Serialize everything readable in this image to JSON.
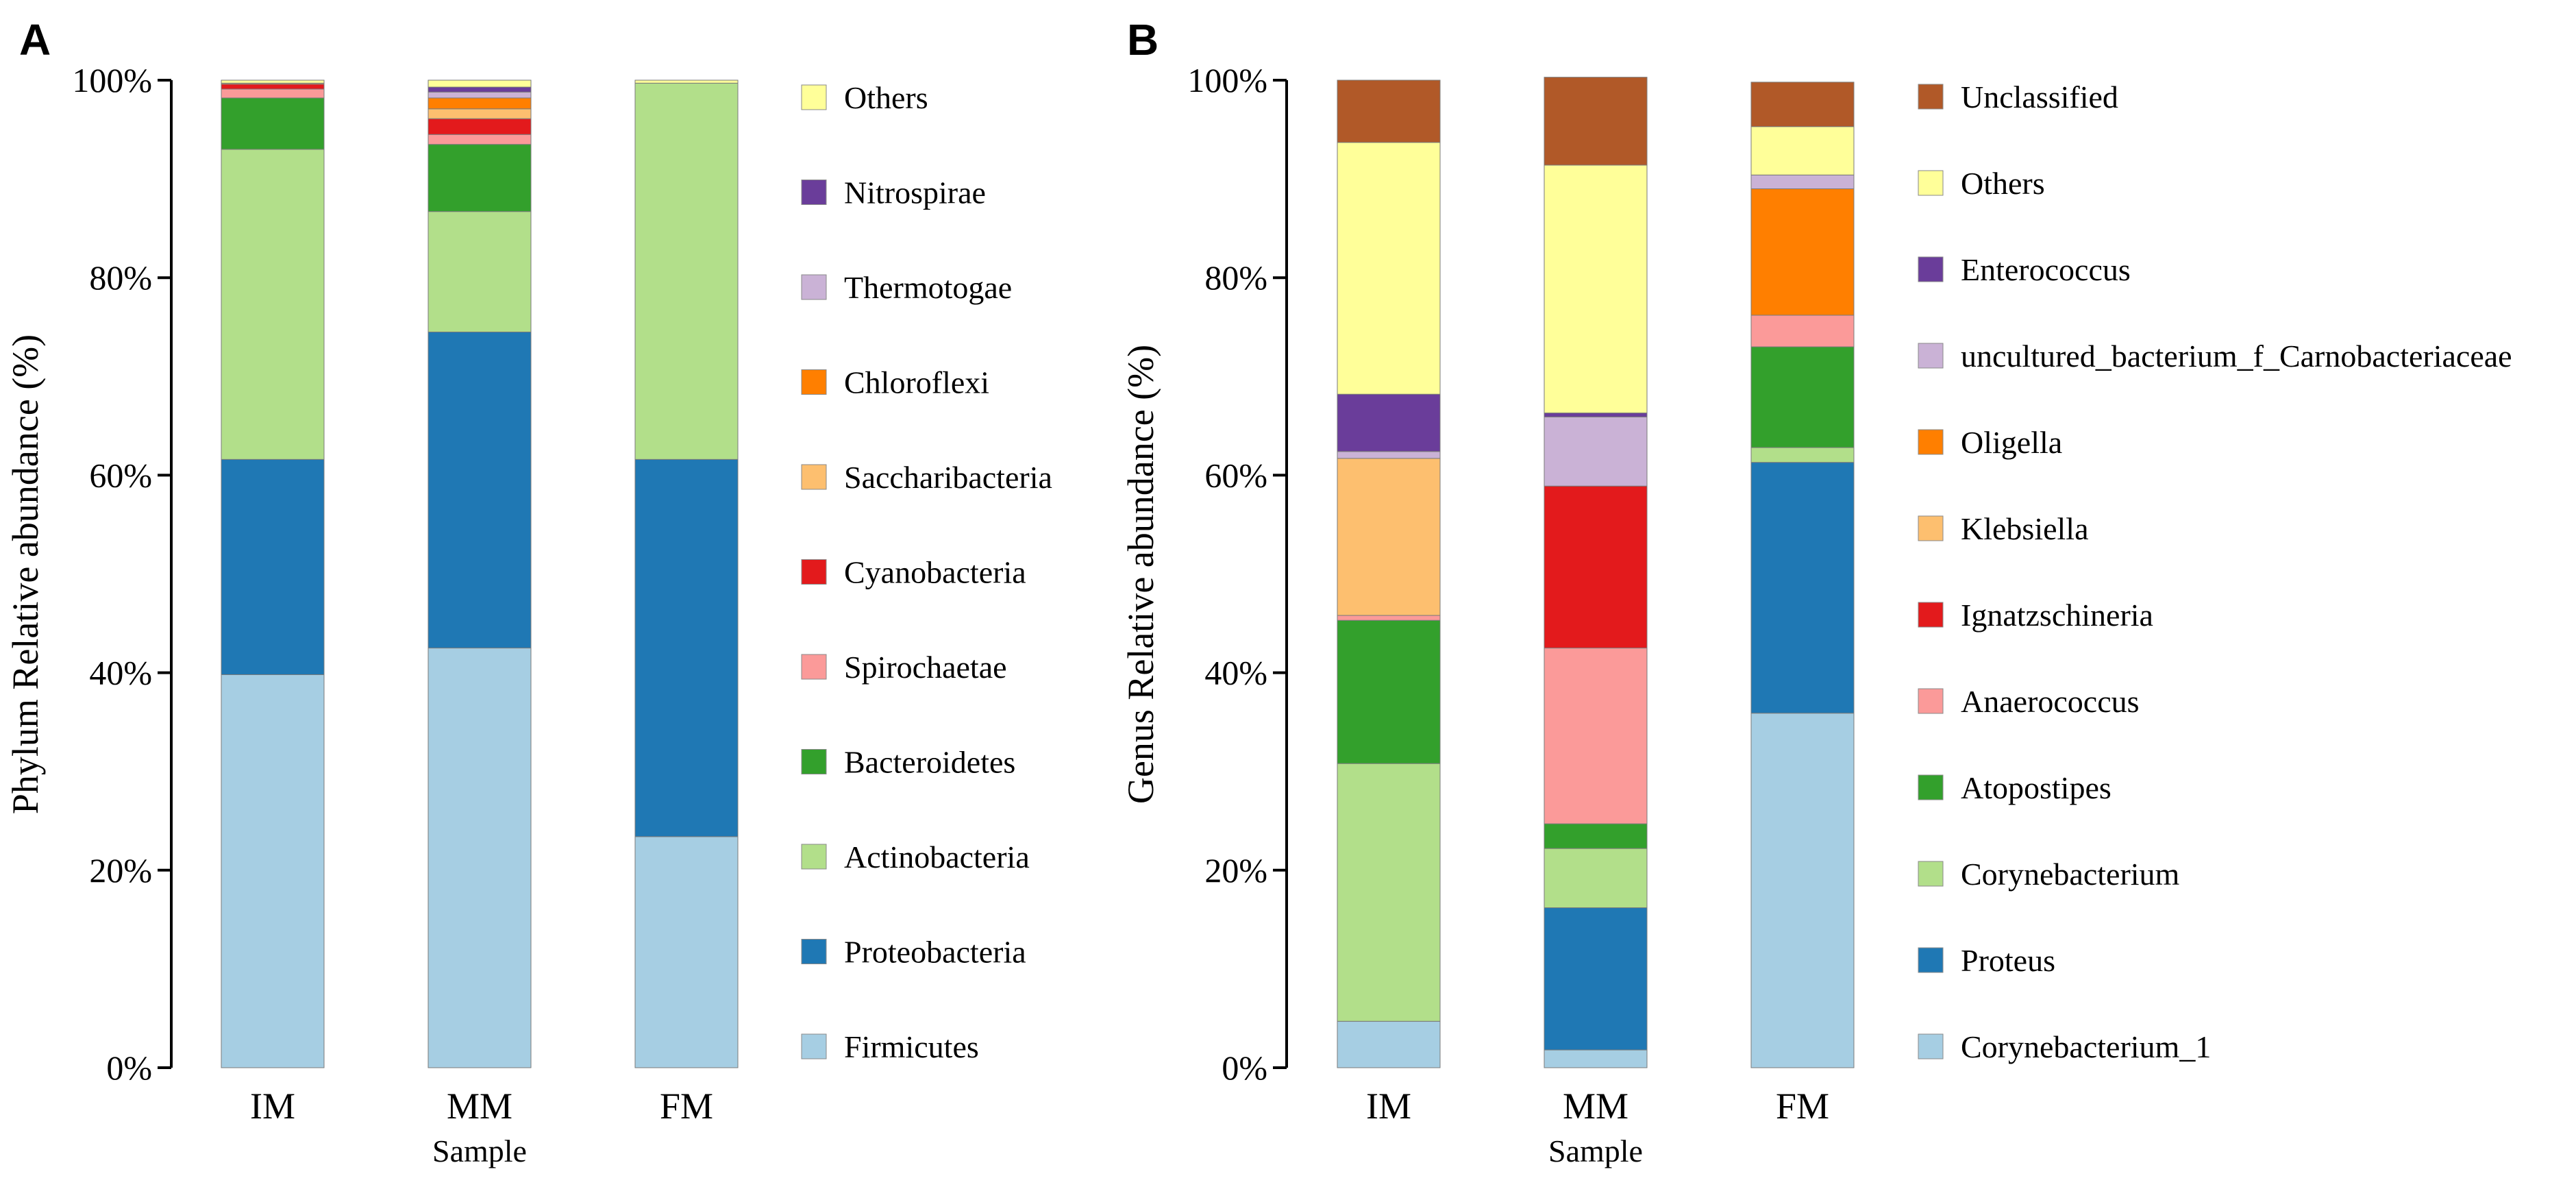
{
  "chart_data": [
    {
      "type": "bar",
      "stacked": true,
      "panel_label": "A",
      "xlabel": "Sample",
      "ylabel": "Phylum Relative abundance (%)",
      "ylim": [
        0,
        100
      ],
      "yticks": [
        "0%",
        "20%",
        "40%",
        "60%",
        "80%",
        "100%"
      ],
      "categories": [
        "IM",
        "MM",
        "FM"
      ],
      "series": [
        {
          "name": "Firmicutes",
          "color": "#a6cee3",
          "values": [
            39.8,
            42.5,
            23.4
          ]
        },
        {
          "name": "Proteobacteria",
          "color": "#1f78b4",
          "values": [
            21.8,
            32.0,
            38.2
          ]
        },
        {
          "name": "Actinobacteria",
          "color": "#b2df8a",
          "values": [
            31.4,
            12.2,
            38.1
          ]
        },
        {
          "name": "Bacteroidetes",
          "color": "#33a02c",
          "values": [
            5.2,
            6.8,
            0.0
          ]
        },
        {
          "name": "Spirochaetae",
          "color": "#fb9a99",
          "values": [
            0.9,
            1.0,
            0.0
          ]
        },
        {
          "name": "Cyanobacteria",
          "color": "#e31a1c",
          "values": [
            0.5,
            1.6,
            0.0
          ]
        },
        {
          "name": "Saccharibacteria",
          "color": "#fdbf6f",
          "values": [
            0.1,
            1.0,
            0.0
          ]
        },
        {
          "name": "Chloroflexi",
          "color": "#ff7f00",
          "values": [
            0.0,
            1.1,
            0.0
          ]
        },
        {
          "name": "Thermotogae",
          "color": "#cab2d6",
          "values": [
            0.0,
            0.6,
            0.0
          ]
        },
        {
          "name": "Nitrospirae",
          "color": "#6a3d9a",
          "values": [
            0.0,
            0.5,
            0.0
          ]
        },
        {
          "name": "Others",
          "color": "#ffff99",
          "values": [
            0.3,
            0.7,
            0.3
          ]
        }
      ]
    },
    {
      "type": "bar",
      "stacked": true,
      "panel_label": "B",
      "xlabel": "Sample",
      "ylabel": "Genus Relative abundance (%)",
      "ylim": [
        0,
        100
      ],
      "yticks": [
        "0%",
        "20%",
        "40%",
        "60%",
        "80%",
        "100%"
      ],
      "categories": [
        "IM",
        "MM",
        "FM"
      ],
      "series": [
        {
          "name": "Corynebacterium_1",
          "color": "#a6cee3",
          "values": [
            4.7,
            1.8,
            35.9
          ]
        },
        {
          "name": "Proteus",
          "color": "#1f78b4",
          "values": [
            0.0,
            14.4,
            25.4
          ]
        },
        {
          "name": "Corynebacterium",
          "color": "#b2df8a",
          "values": [
            26.1,
            6.0,
            1.5
          ]
        },
        {
          "name": "Atopostipes",
          "color": "#33a02c",
          "values": [
            14.5,
            2.5,
            10.2
          ]
        },
        {
          "name": "Anaerococcus",
          "color": "#fb9a99",
          "values": [
            0.5,
            17.8,
            3.2
          ]
        },
        {
          "name": "Ignatzschineria",
          "color": "#e31a1c",
          "values": [
            0.0,
            16.4,
            0.0
          ]
        },
        {
          "name": "Klebsiella",
          "color": "#fdbf6f",
          "values": [
            15.9,
            0.0,
            0.0
          ]
        },
        {
          "name": "Oligella",
          "color": "#ff7f00",
          "values": [
            0.0,
            0.0,
            12.8
          ]
        },
        {
          "name": "uncultured_bacterium_f_Carnobacteriaceae",
          "color": "#cab2d6",
          "values": [
            0.7,
            7.0,
            1.4
          ]
        },
        {
          "name": "Enterococcus",
          "color": "#6a3d9a",
          "values": [
            5.8,
            0.4,
            0.0
          ]
        },
        {
          "name": "Others",
          "color": "#ffff99",
          "values": [
            25.5,
            25.1,
            4.9
          ]
        },
        {
          "name": "Unclassified",
          "color": "#b15928",
          "values": [
            6.3,
            8.9,
            4.5
          ]
        }
      ]
    }
  ]
}
